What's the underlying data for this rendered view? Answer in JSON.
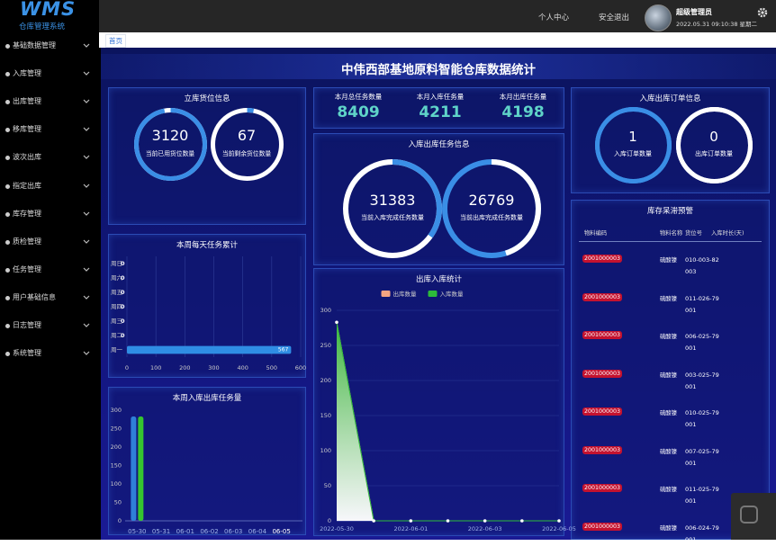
{
  "sidebar": {
    "logo": "WMS",
    "subtitle": "仓库管理系统",
    "menu": [
      "基础数据管理",
      "入库管理",
      "出库管理",
      "移库管理",
      "波次出库",
      "指定出库",
      "库存管理",
      "质检管理",
      "任务管理",
      "用户基础信息",
      "日志管理",
      "系统管理"
    ]
  },
  "topbar": {
    "links": [
      "个人中心",
      "安全退出"
    ],
    "user": "超级管理员",
    "datetime": "2022.05.31 09:10:38 星期二"
  },
  "tabs": [
    "首页"
  ],
  "dashboard_title": "中伟西部基地原料智能仓库数据统计",
  "storage": {
    "title": "立库货位信息",
    "items": [
      {
        "value": 3120,
        "label": "当前已用货位数量"
      },
      {
        "value": 67,
        "label": "当前剩余货位数量"
      }
    ]
  },
  "monthly": [
    {
      "label": "本月总任务数量",
      "value": 8409
    },
    {
      "label": "本月入库任务量",
      "value": 4211
    },
    {
      "label": "本月出库任务量",
      "value": 4198
    }
  ],
  "tasks": {
    "title": "入库出库任务信息",
    "items": [
      {
        "value": 31383,
        "label": "当前入库完成任务数量"
      },
      {
        "value": 26769,
        "label": "当前出库完成任务数量"
      }
    ]
  },
  "orders": {
    "title": "入库出库订单信息",
    "items": [
      {
        "value": 1,
        "label": "入库订单数量"
      },
      {
        "value": 0,
        "label": "出库订单数量"
      }
    ]
  },
  "warning": {
    "title": "库存呆滞预警",
    "columns": [
      "物料编码",
      "物料名称",
      "货位号",
      "入库时长(天)"
    ],
    "rows": [
      [
        "2001000003",
        "硫酸镍",
        "010-003-82003"
      ],
      [
        "2001000003",
        "硫酸镍",
        "011-026-79001"
      ],
      [
        "2001000003",
        "硫酸镍",
        "006-025-79001"
      ],
      [
        "2001000003",
        "硫酸镍",
        "003-025-79001"
      ],
      [
        "2001000003",
        "硫酸镍",
        "010-025-79001"
      ],
      [
        "2001000003",
        "硫酸镍",
        "007-025-79001"
      ],
      [
        "2001000003",
        "硫酸镍",
        "011-025-79001"
      ],
      [
        "2001000003",
        "硫酸镍",
        "006-024-79001"
      ]
    ]
  },
  "chart_data": [
    {
      "type": "bar",
      "orientation": "horizontal",
      "title": "本周每天任务累计",
      "categories": [
        "周一",
        "周二",
        "周三",
        "周四",
        "周五",
        "周六",
        "周日"
      ],
      "values": [
        567,
        0,
        0,
        0,
        0,
        0,
        0
      ],
      "color": "#2f8de4",
      "xlim": [
        0,
        600
      ],
      "xticks": [
        0,
        100,
        200,
        300,
        400,
        500,
        600
      ],
      "grid": true
    },
    {
      "type": "grouped_bar",
      "title": "本周入库出库任务量",
      "categories": [
        "05-30",
        "05-31",
        "06-01",
        "06-02",
        "06-03",
        "06-04",
        "06-05"
      ],
      "series": [
        {
          "color": "#2f7fd8",
          "values": [
            283,
            0,
            0,
            0,
            0,
            0,
            0
          ]
        },
        {
          "color": "#35c52f",
          "values": [
            283,
            0,
            0,
            0,
            0,
            0,
            0
          ]
        }
      ],
      "ylim": [
        0,
        300
      ],
      "yticks": [
        0,
        50,
        100,
        150,
        200,
        250,
        300
      ],
      "grid": false
    },
    {
      "type": "area",
      "title": "出库入库统计",
      "categories": [
        "2022-05-30",
        null,
        "2022-06-01",
        null,
        "2022-06-03",
        null,
        "2022-06-05"
      ],
      "series": [
        {
          "name": "出库数量",
          "color": "#f4a582",
          "values": [
            283,
            0,
            0,
            0,
            0,
            0,
            0
          ]
        },
        {
          "name": "入库数量",
          "color": "#2dbb3a",
          "values": [
            283,
            0,
            0,
            0,
            0,
            0,
            0
          ]
        }
      ],
      "ylim": [
        0,
        300
      ],
      "yticks": [
        0,
        50,
        100,
        150,
        200,
        250,
        300
      ],
      "grid": true
    }
  ]
}
